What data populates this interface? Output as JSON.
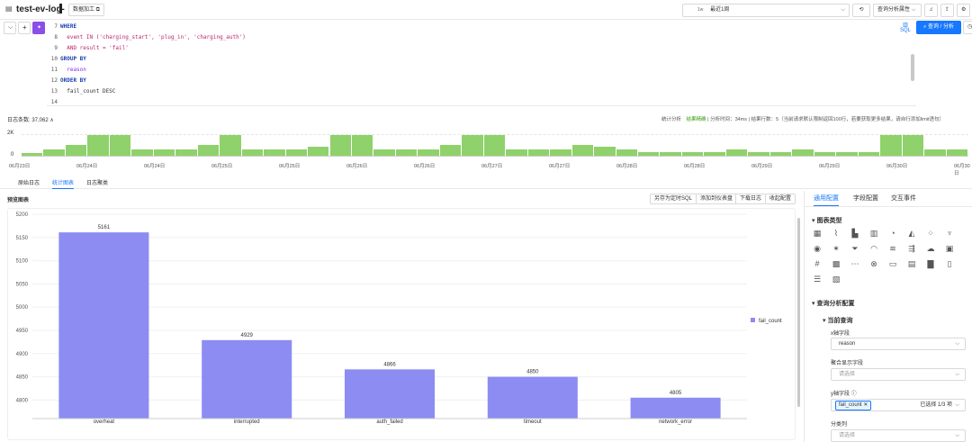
{
  "header": {
    "title": "test-ev-log-",
    "data_process_label": "数据加工",
    "time_prefix": "1w",
    "time_range": "最近1周",
    "query_attr": "查询分析属性",
    "query_button": "查询 / 分析"
  },
  "editor": {
    "lines": [
      {
        "no": "7",
        "text": "WHERE",
        "cls": "kw"
      },
      {
        "no": "8",
        "text": "  event IN ('charging_start', 'plug_in', 'charging_auth')",
        "cls": "str"
      },
      {
        "no": "9",
        "text": "  AND result = 'fail'",
        "cls": "str"
      },
      {
        "no": "10",
        "text": "GROUP BY",
        "cls": "kw"
      },
      {
        "no": "11",
        "text": "  reason",
        "cls": "fn"
      },
      {
        "no": "12",
        "text": "ORDER BY",
        "cls": "kw"
      },
      {
        "no": "13",
        "text": "  fail_count DESC",
        "cls": ""
      },
      {
        "no": "14",
        "text": "",
        "cls": ""
      }
    ],
    "sql_label": "SQL"
  },
  "log_summary": {
    "count_label": "日志条数: 37,062",
    "stats": "统计分析",
    "precise": "结果精确",
    "time": "分析时间：34ms",
    "rows": "结果行数：5（当前请求默认限制返回100行，若要获取更多结果，请自行添加limit语句）"
  },
  "histogram": {
    "y_ticks": [
      "2K",
      "0"
    ],
    "x_ticks": [
      "06月23日",
      "06月24日",
      "06月24日",
      "06月25日",
      "06月25日",
      "06月26日",
      "06月26日",
      "06月27日",
      "06月27日",
      "06月28日",
      "06月28日",
      "06月29日",
      "06月29日",
      "06月30日",
      "06月30日"
    ],
    "values": [
      350,
      700,
      1250,
      2300,
      2300,
      700,
      700,
      700,
      1250,
      2300,
      700,
      700,
      700,
      1000,
      2300,
      2300,
      700,
      700,
      700,
      1250,
      2300,
      2300,
      700,
      700,
      700,
      1250,
      1000,
      700,
      400,
      400,
      400,
      400,
      700,
      400,
      400,
      700,
      400,
      400,
      400,
      2300,
      2300,
      700,
      700
    ]
  },
  "tabs": [
    "原始日志",
    "统计图表",
    "日志聚类"
  ],
  "active_tab": 1,
  "preview": {
    "title": "预览图表",
    "buttons": [
      "另存为定时SQL",
      "添加到仪表盘",
      "下载日志",
      "收起配置"
    ]
  },
  "chart_data": {
    "type": "bar",
    "categories": [
      "overheat",
      "interrupted",
      "auth_failed",
      "timeout",
      "network_error"
    ],
    "series": [
      {
        "name": "fail_count",
        "values": [
          5161,
          4929,
          4866,
          4850,
          4805
        ]
      }
    ],
    "y_ticks": [
      "5200",
      "5150",
      "5100",
      "5050",
      "5000",
      "4950",
      "4900",
      "4850",
      "4800"
    ],
    "ylim": [
      4760,
      5200
    ],
    "legend": "right",
    "color": "#8c8cf3"
  },
  "right_panel": {
    "tabs": [
      "通用配置",
      "字段配置",
      "交互事件"
    ],
    "chart_type_label": "图表类型",
    "query_config_label": "查询分析配置",
    "current_query_label": "当前查询",
    "x_field_label": "x轴字段",
    "x_field_value": "reason",
    "combine_label": "聚合显示字段",
    "combine_placeholder": "请选择",
    "y_field_label": "y轴字段",
    "y_tag": "fail_count",
    "y_selected": "已选择 1/3 项",
    "category_label": "分类列",
    "category_placeholder": "请选择"
  }
}
